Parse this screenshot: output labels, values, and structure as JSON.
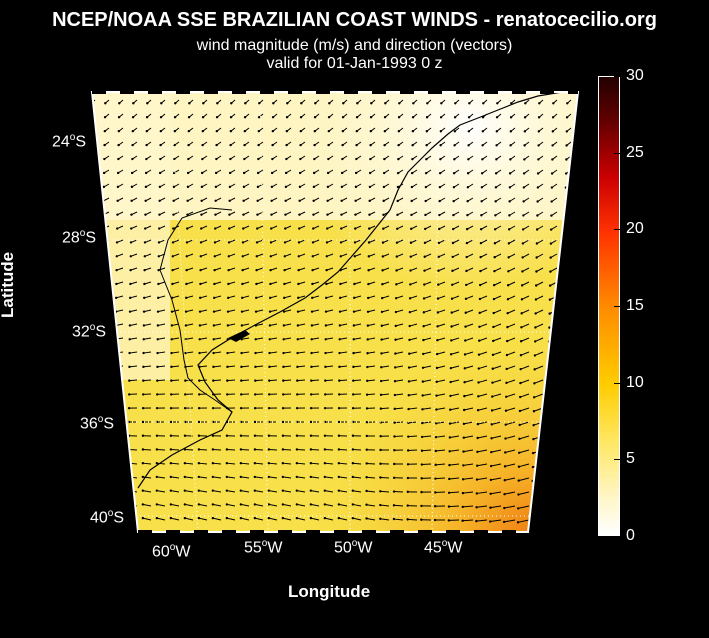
{
  "title": {
    "line1": "NCEP/NOAA SSE BRAZILIAN COAST WINDS - renatocecilio.org",
    "line2": "wind magnitude (m/s) and direction (vectors)",
    "line3": "valid for 01-Jan-1993  0 z"
  },
  "axes": {
    "ylabel": "Latitude",
    "xlabel": "Longitude",
    "lat_ticks": [
      {
        "deg": "24",
        "hemi": "S"
      },
      {
        "deg": "28",
        "hemi": "S"
      },
      {
        "deg": "32",
        "hemi": "S"
      },
      {
        "deg": "36",
        "hemi": "S"
      },
      {
        "deg": "40",
        "hemi": "S"
      }
    ],
    "lon_ticks": [
      {
        "deg": "60",
        "hemi": "W"
      },
      {
        "deg": "55",
        "hemi": "W"
      },
      {
        "deg": "50",
        "hemi": "W"
      },
      {
        "deg": "45",
        "hemi": "W"
      }
    ]
  },
  "colorbar": {
    "ticks": [
      "0",
      "5",
      "10",
      "15",
      "20",
      "25",
      "30"
    ],
    "range": [
      0,
      30
    ],
    "colors": [
      "#ffffff",
      "#ffe866",
      "#ffcc00",
      "#ff8a00",
      "#ff3300",
      "#cc0000",
      "#220000"
    ]
  }
}
